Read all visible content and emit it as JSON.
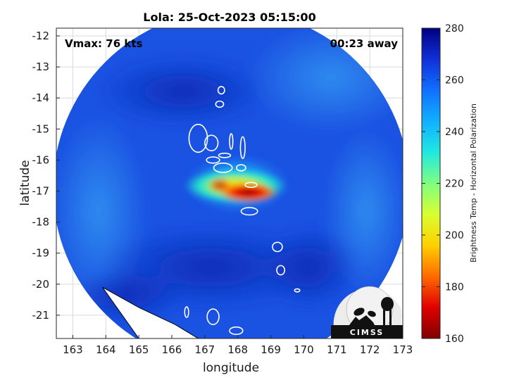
{
  "title": "Lola: 25-Oct-2023 05:15:00",
  "vmax_label": "Vmax: 76 kts",
  "time_away_label": "00:23 away",
  "x_axis": {
    "label": "longitude",
    "range": [
      162.5,
      173
    ],
    "ticks": [
      "163",
      "164",
      "165",
      "166",
      "167",
      "168",
      "169",
      "170",
      "171",
      "172",
      "173"
    ]
  },
  "y_axis": {
    "label": "latitude",
    "range": [
      -21.75,
      -11.75
    ],
    "ticks": [
      "-12",
      "-13",
      "-14",
      "-15",
      "-16",
      "-17",
      "-18",
      "-19",
      "-20",
      "-21"
    ]
  },
  "colorbar": {
    "label": "Brightness Temp - Horizontal Polarization",
    "range": [
      160,
      280
    ],
    "ticks": [
      "160",
      "180",
      "200",
      "220",
      "240",
      "260",
      "280"
    ]
  },
  "logo": {
    "text": "CIMSS"
  },
  "colors": {
    "background_field": "#1a4fe0",
    "convection_core": "#d40000",
    "coastline": "#ffffff",
    "swath_edge_land": "#000000"
  },
  "map_data": {
    "storm_center": {
      "lon": 168.1,
      "lat": -16.95
    },
    "swath_center": {
      "lon": 167.8,
      "lat": -16.9
    },
    "swath_radius_deg": 5.4,
    "islands": [
      {
        "name": "",
        "lon": 167.5,
        "lat": -13.75,
        "rx": 0.1,
        "ry": 0.12
      },
      {
        "name": "",
        "lon": 167.45,
        "lat": -14.2,
        "rx": 0.12,
        "ry": 0.1
      },
      {
        "name": "",
        "lon": 166.8,
        "lat": -15.3,
        "rx": 0.28,
        "ry": 0.45
      },
      {
        "name": "",
        "lon": 167.2,
        "lat": -15.45,
        "rx": 0.2,
        "ry": 0.25
      },
      {
        "name": "",
        "lon": 167.8,
        "lat": -15.4,
        "rx": 0.05,
        "ry": 0.25
      },
      {
        "name": "",
        "lon": 167.6,
        "lat": -15.85,
        "rx": 0.18,
        "ry": 0.07
      },
      {
        "name": "",
        "lon": 168.15,
        "lat": -15.6,
        "rx": 0.07,
        "ry": 0.35
      },
      {
        "name": "",
        "lon": 167.25,
        "lat": -16.0,
        "rx": 0.2,
        "ry": 0.1
      },
      {
        "name": "",
        "lon": 167.55,
        "lat": -16.25,
        "rx": 0.28,
        "ry": 0.15
      },
      {
        "name": "",
        "lon": 168.1,
        "lat": -16.25,
        "rx": 0.14,
        "ry": 0.1
      },
      {
        "name": "",
        "lon": 168.4,
        "lat": -16.8,
        "rx": 0.18,
        "ry": 0.08
      },
      {
        "name": "",
        "lon": 168.35,
        "lat": -17.65,
        "rx": 0.25,
        "ry": 0.12
      },
      {
        "name": "",
        "lon": 169.2,
        "lat": -18.8,
        "rx": 0.15,
        "ry": 0.15
      },
      {
        "name": "",
        "lon": 169.3,
        "lat": -19.55,
        "rx": 0.12,
        "ry": 0.15
      },
      {
        "name": "",
        "lon": 169.8,
        "lat": -20.2,
        "rx": 0.08,
        "ry": 0.05
      },
      {
        "name": "",
        "lon": 166.45,
        "lat": -20.9,
        "rx": 0.06,
        "ry": 0.17
      },
      {
        "name": "",
        "lon": 167.25,
        "lat": -21.05,
        "rx": 0.18,
        "ry": 0.25
      },
      {
        "name": "",
        "lon": 167.95,
        "lat": -21.5,
        "rx": 0.2,
        "ry": 0.12
      }
    ]
  }
}
